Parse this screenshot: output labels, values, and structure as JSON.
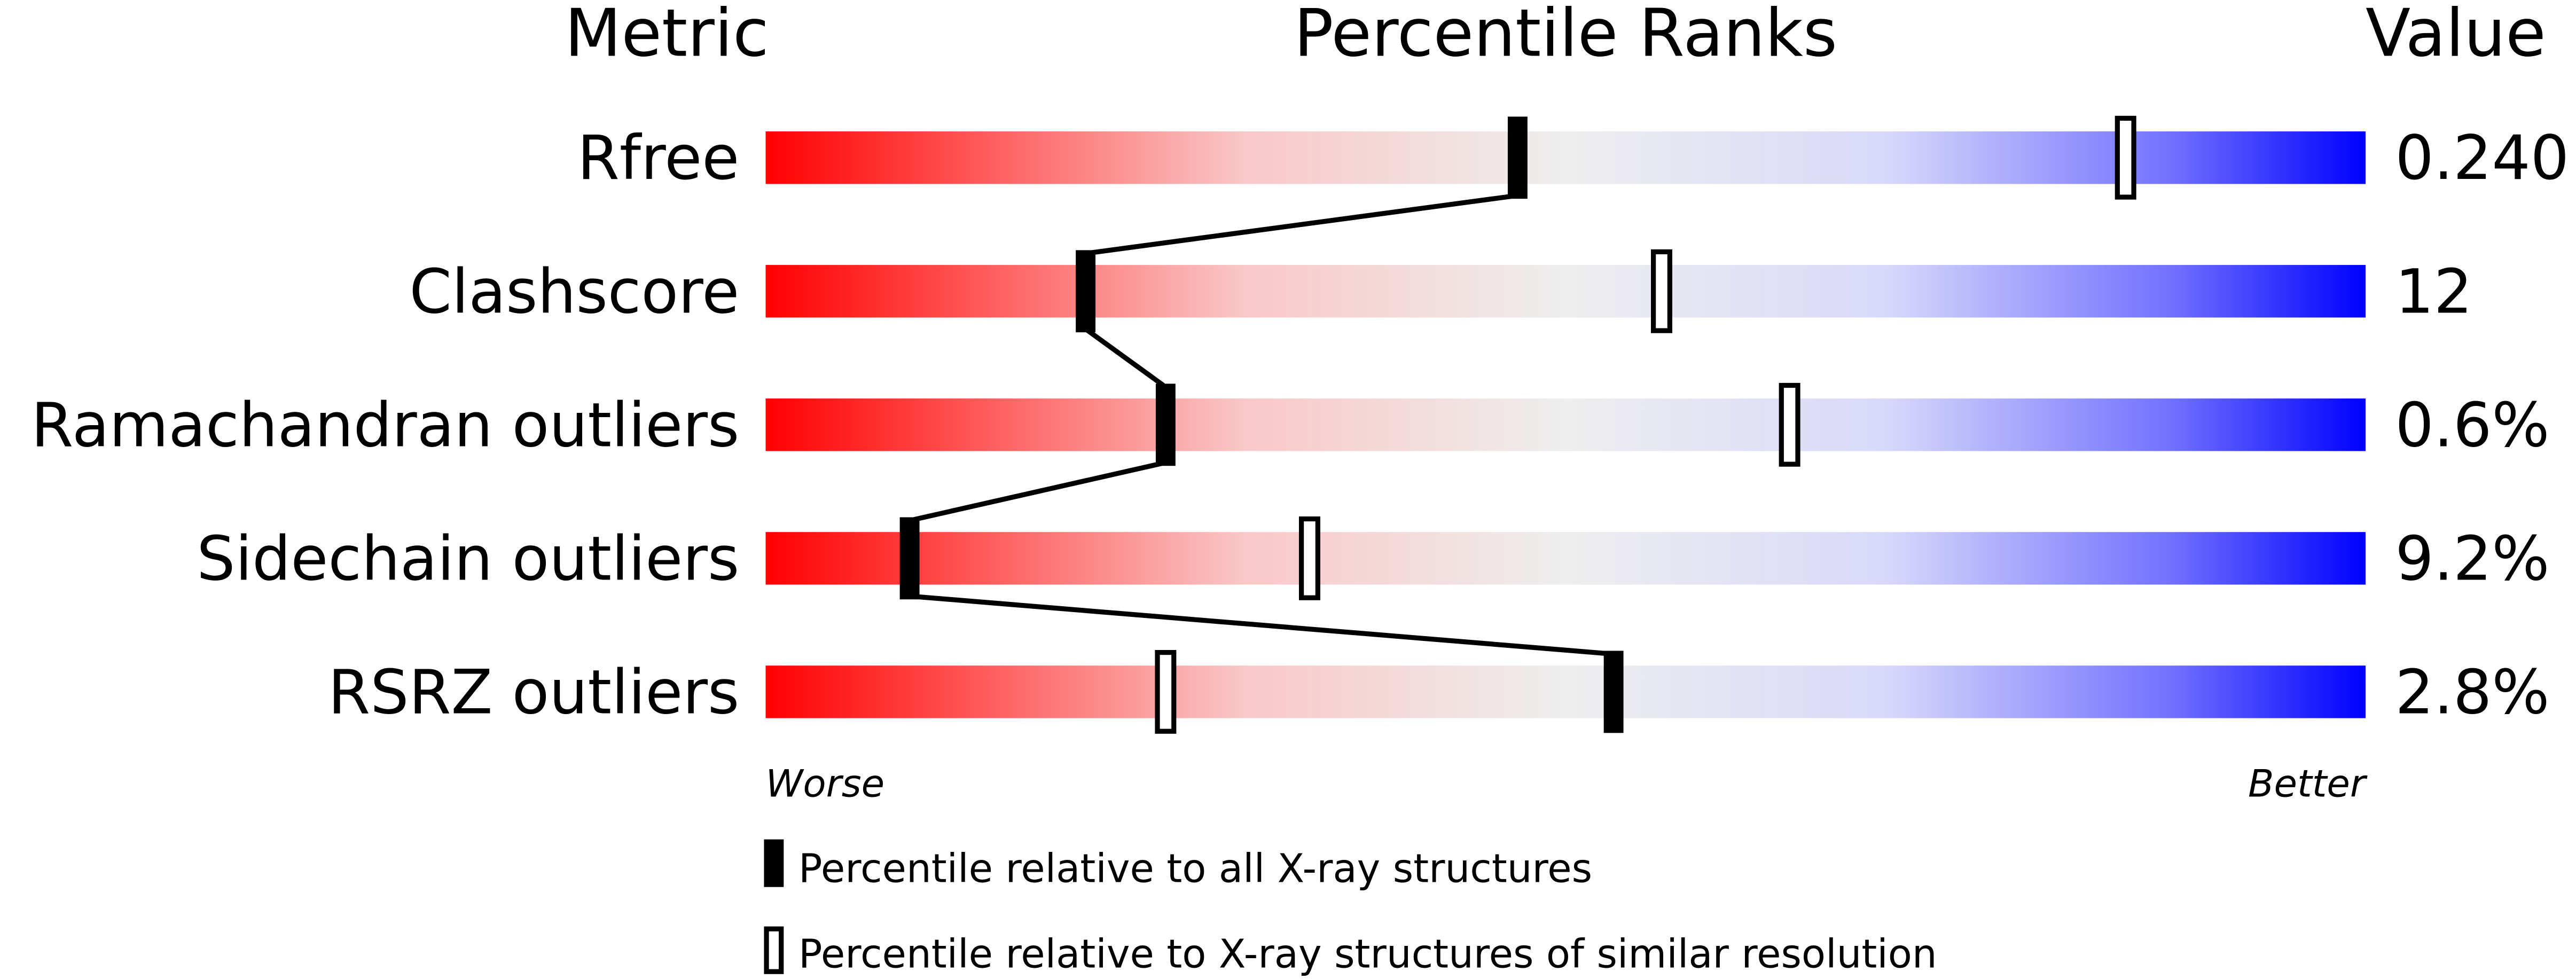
{
  "chart_data": {
    "type": "percentile-bar",
    "headers": {
      "metric": "Metric",
      "ranks": "Percentile Ranks",
      "value": "Value"
    },
    "xlim": [
      0,
      100
    ],
    "axis_labels": {
      "left": "Worse",
      "right": "Better"
    },
    "colors": {
      "worse": "#ff0000",
      "middle": "#eeeeee",
      "better": "#0000ff",
      "marker": "#000000"
    },
    "metrics": [
      {
        "name": "Rfree",
        "value": "0.240",
        "percentile_all": 47,
        "percentile_similar": 85
      },
      {
        "name": "Clashscore",
        "value": "12",
        "percentile_all": 20,
        "percentile_similar": 56
      },
      {
        "name": "Ramachandran outliers",
        "value": "0.6%",
        "percentile_all": 25,
        "percentile_similar": 64
      },
      {
        "name": "Sidechain outliers",
        "value": "9.2%",
        "percentile_all": 9,
        "percentile_similar": 34
      },
      {
        "name": "RSRZ outliers",
        "value": "2.8%",
        "percentile_all": 53,
        "percentile_similar": 25
      }
    ],
    "legend": [
      {
        "marker": "filled",
        "label": "Percentile relative to all X-ray structures"
      },
      {
        "marker": "open",
        "label": "Percentile relative to X-ray structures of similar resolution"
      }
    ]
  }
}
